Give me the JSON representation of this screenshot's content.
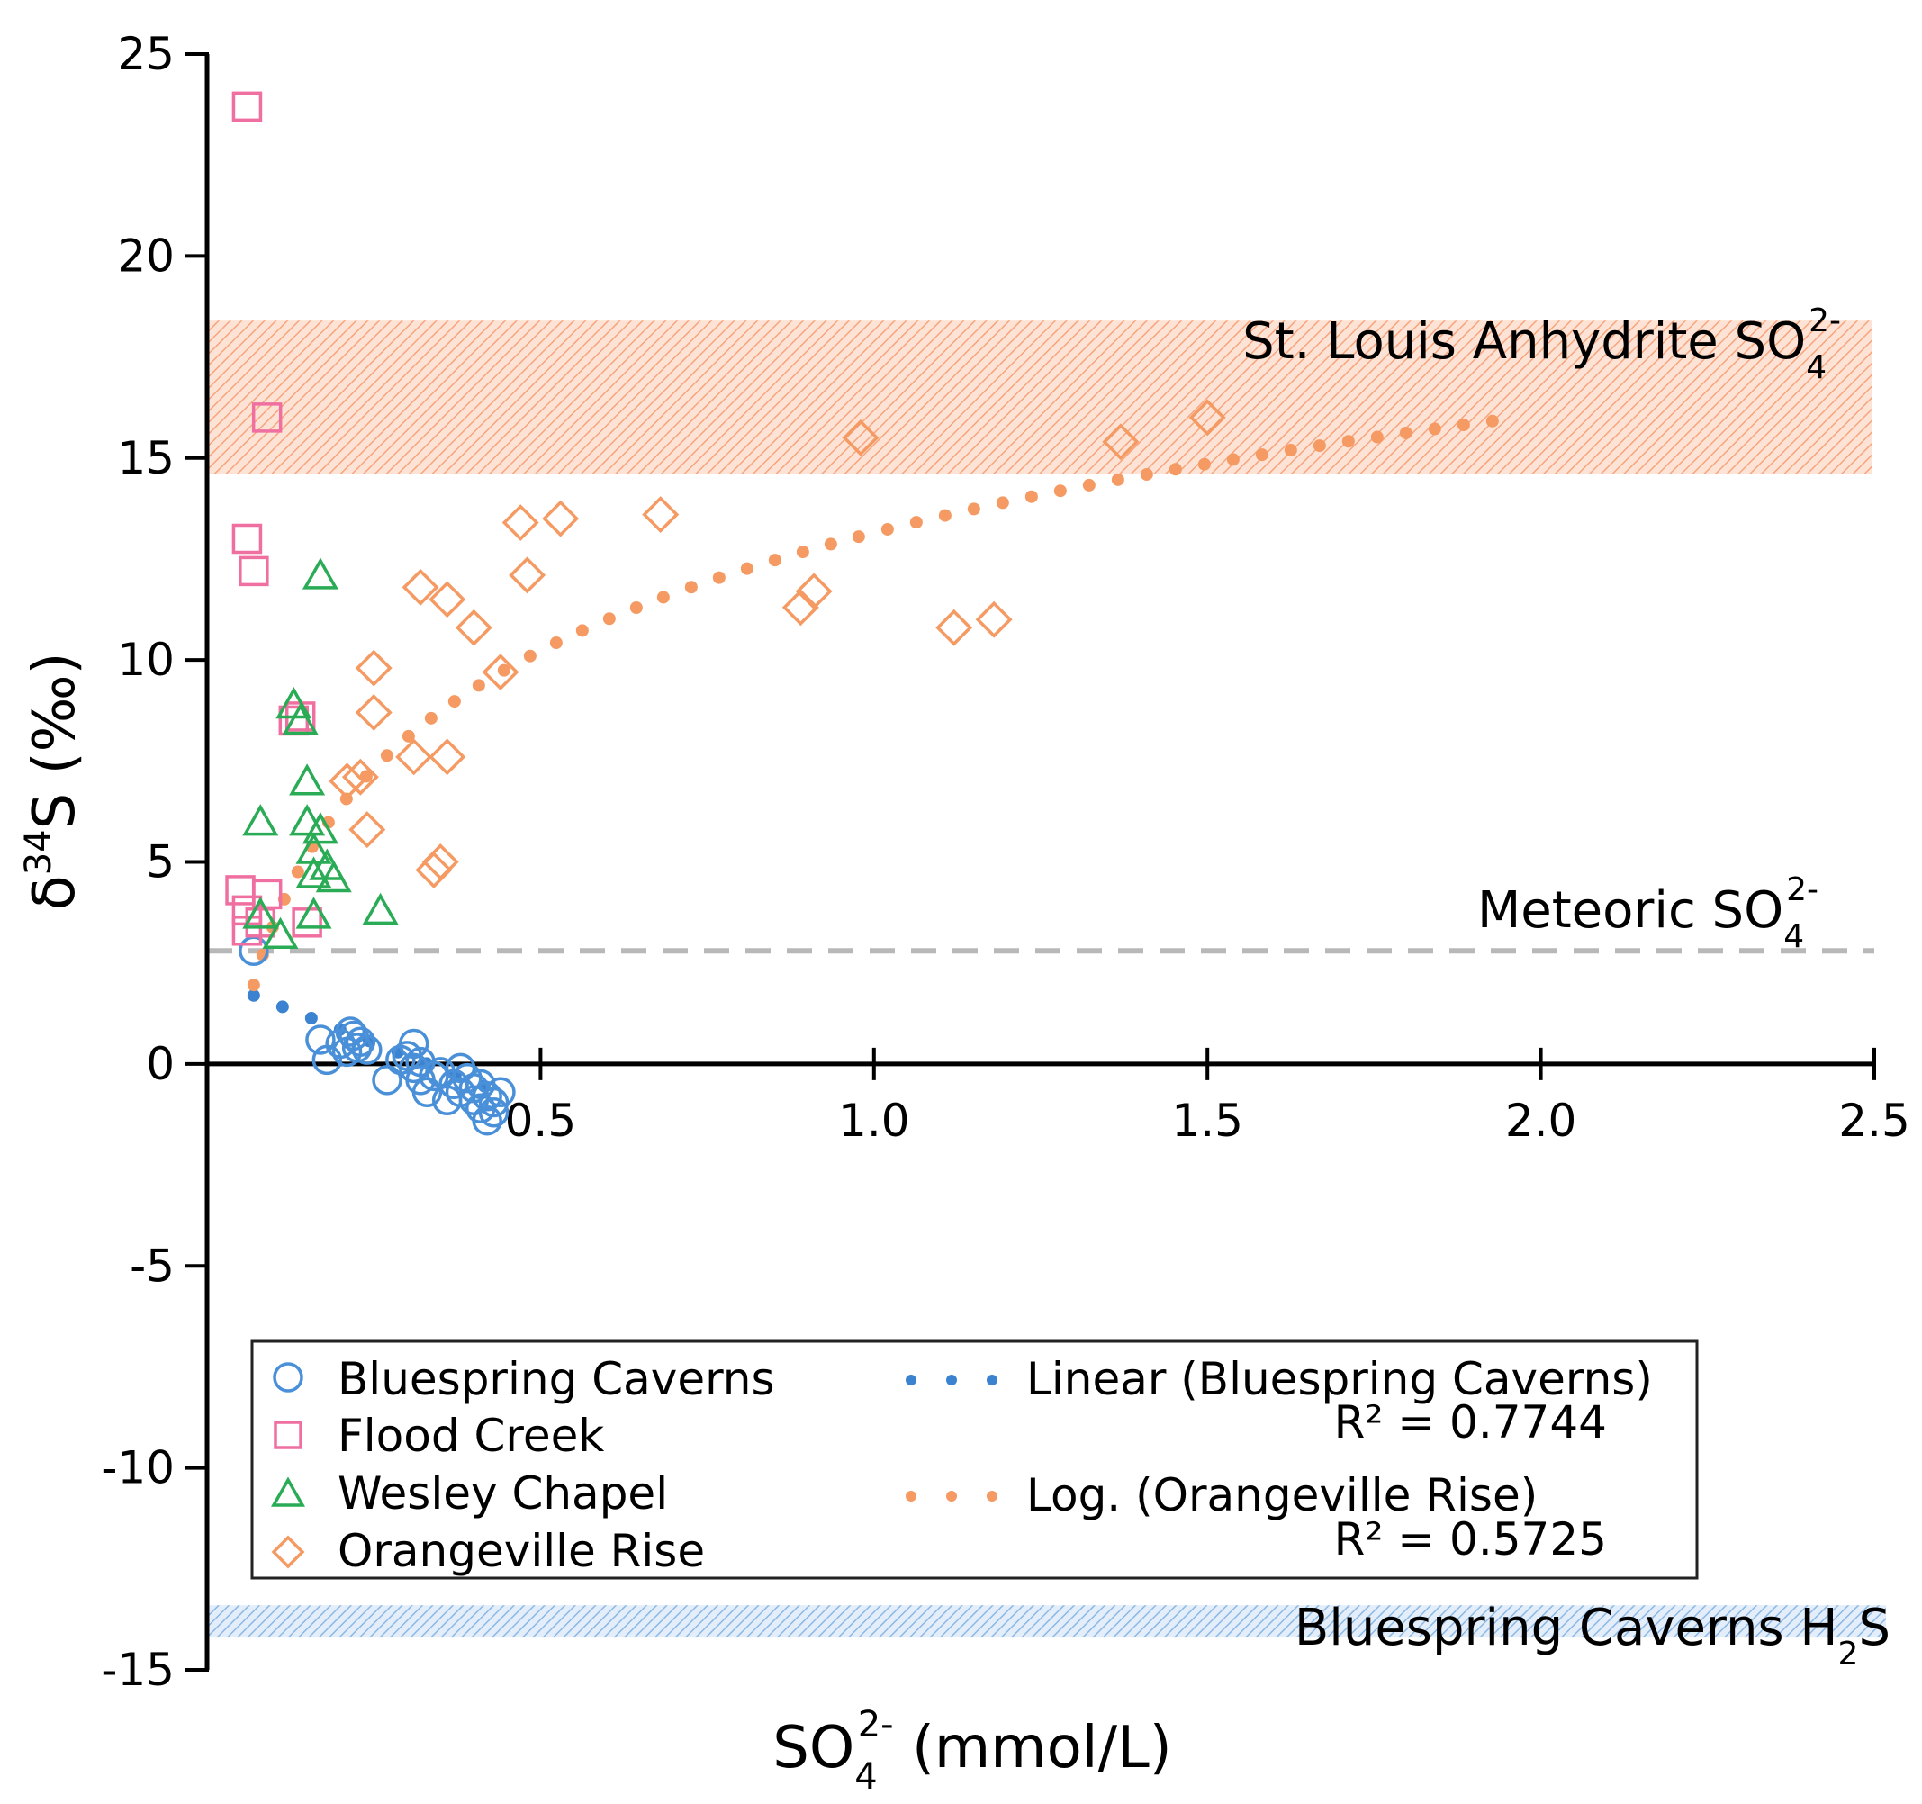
{
  "chart_data": {
    "type": "scatter",
    "xlabel": "SO",
    "xlabel_sub": "4",
    "xlabel_sup": "2-",
    "xlabel_unit": " (mmol/L)",
    "ylabel_delta": "δ",
    "ylabel_sup": "34",
    "ylabel_rest": "S (‰)",
    "xlim": [
      0,
      2.5
    ],
    "ylim": [
      -15,
      25
    ],
    "x_ticks": [
      {
        "v": 0.5,
        "label": "0.5"
      },
      {
        "v": 1.0,
        "label": "1.0"
      },
      {
        "v": 1.5,
        "label": "1.5"
      },
      {
        "v": 2.0,
        "label": "2.0"
      },
      {
        "v": 2.5,
        "label": "2.5"
      }
    ],
    "y_ticks": [
      {
        "v": 25,
        "label": "25"
      },
      {
        "v": 20,
        "label": "20"
      },
      {
        "v": 15,
        "label": "15"
      },
      {
        "v": 10,
        "label": "10"
      },
      {
        "v": 5,
        "label": "5"
      },
      {
        "v": 0,
        "label": "0"
      },
      {
        "v": -5,
        "label": "-5"
      },
      {
        "v": -10,
        "label": "-10"
      },
      {
        "v": -15,
        "label": "-15"
      }
    ],
    "bands": [
      {
        "name": "St. Louis Anhydrite SO",
        "sub": "4",
        "sup": "2-",
        "ymin": 14.6,
        "ymax": 18.4,
        "color": "#f9b08f"
      },
      {
        "name": "Bluespring Caverns H",
        "sub": "2",
        "tail": "S",
        "ymin": -14.2,
        "ymax": -13.4,
        "color": "#9dc3e6"
      }
    ],
    "reference_lines": [
      {
        "name": "Meteoric SO",
        "sub": "4",
        "sup": "2-",
        "y": 2.8,
        "color": "#b8b8b8"
      }
    ],
    "series": [
      {
        "name": "Bluespring Caverns",
        "marker": "circle",
        "color": "#4a90d9",
        "points": [
          [
            0.07,
            2.8
          ],
          [
            0.17,
            0.6
          ],
          [
            0.18,
            0.1
          ],
          [
            0.2,
            0.5
          ],
          [
            0.21,
            0.3
          ],
          [
            0.215,
            0.8
          ],
          [
            0.22,
            0.7
          ],
          [
            0.225,
            0.4
          ],
          [
            0.23,
            0.55
          ],
          [
            0.24,
            0.35
          ],
          [
            0.27,
            -0.4
          ],
          [
            0.29,
            0.1
          ],
          [
            0.3,
            0.2
          ],
          [
            0.31,
            0.5
          ],
          [
            0.31,
            -0.1
          ],
          [
            0.32,
            0.05
          ],
          [
            0.32,
            -0.4
          ],
          [
            0.33,
            -0.7
          ],
          [
            0.34,
            -0.3
          ],
          [
            0.35,
            -0.2
          ],
          [
            0.36,
            -0.9
          ],
          [
            0.37,
            -0.5
          ],
          [
            0.38,
            -0.1
          ],
          [
            0.38,
            -0.7
          ],
          [
            0.39,
            -0.35
          ],
          [
            0.4,
            -0.6
          ],
          [
            0.4,
            -0.9
          ],
          [
            0.41,
            -1.1
          ],
          [
            0.41,
            -0.5
          ],
          [
            0.42,
            -0.8
          ],
          [
            0.42,
            -1.4
          ],
          [
            0.43,
            -0.95
          ],
          [
            0.43,
            -1.2
          ],
          [
            0.44,
            -0.7
          ]
        ]
      },
      {
        "name": "Flood Creek",
        "marker": "square",
        "color": "#ef6fa0",
        "points": [
          [
            0.06,
            23.7
          ],
          [
            0.09,
            16.0
          ],
          [
            0.06,
            13.0
          ],
          [
            0.07,
            12.2
          ],
          [
            0.13,
            8.5
          ],
          [
            0.14,
            8.6
          ],
          [
            0.05,
            4.3
          ],
          [
            0.06,
            3.8
          ],
          [
            0.06,
            3.3
          ],
          [
            0.08,
            3.5
          ],
          [
            0.09,
            4.2
          ],
          [
            0.15,
            3.5
          ]
        ]
      },
      {
        "name": "Wesley Chapel",
        "marker": "triangle",
        "color": "#2aab55",
        "points": [
          [
            0.17,
            12.1
          ],
          [
            0.13,
            8.9
          ],
          [
            0.14,
            8.5
          ],
          [
            0.15,
            7.0
          ],
          [
            0.08,
            6.0
          ],
          [
            0.15,
            6.0
          ],
          [
            0.17,
            5.8
          ],
          [
            0.16,
            5.3
          ],
          [
            0.16,
            4.7
          ],
          [
            0.18,
            4.9
          ],
          [
            0.19,
            4.6
          ],
          [
            0.08,
            3.7
          ],
          [
            0.11,
            3.2
          ],
          [
            0.16,
            3.7
          ],
          [
            0.26,
            3.8
          ]
        ]
      },
      {
        "name": "Orangeville Rise",
        "marker": "diamond",
        "color": "#f49a62",
        "points": [
          [
            0.98,
            15.5
          ],
          [
            1.37,
            15.4
          ],
          [
            1.5,
            16.0
          ],
          [
            0.47,
            13.4
          ],
          [
            0.53,
            13.5
          ],
          [
            0.68,
            13.6
          ],
          [
            0.32,
            11.8
          ],
          [
            0.36,
            11.5
          ],
          [
            0.48,
            12.1
          ],
          [
            0.4,
            10.8
          ],
          [
            0.89,
            11.3
          ],
          [
            0.91,
            11.7
          ],
          [
            1.12,
            10.8
          ],
          [
            1.18,
            11.0
          ],
          [
            0.25,
            9.8
          ],
          [
            0.44,
            9.7
          ],
          [
            0.25,
            8.7
          ],
          [
            0.31,
            7.6
          ],
          [
            0.36,
            7.6
          ],
          [
            0.21,
            7.0
          ],
          [
            0.23,
            7.1
          ],
          [
            0.24,
            5.8
          ],
          [
            0.34,
            4.8
          ],
          [
            0.35,
            5.0
          ]
        ]
      }
    ],
    "trendlines": [
      {
        "name": "Linear (Bluespring Caverns)",
        "r2_text": "R² = 0.7744",
        "type": "linear",
        "slope": -6.5,
        "intercept": 2.15,
        "x_range": [
          0.07,
          0.43
        ],
        "color": "#3b82d1"
      },
      {
        "name": "Log. (Orangeville Rise)",
        "r2_text": "R² = 0.5725",
        "type": "log",
        "a": 4.21,
        "b": 13.15,
        "x_range": [
          0.07,
          1.97
        ],
        "color": "#f49a62"
      }
    ],
    "legend_position": "bottom-left"
  }
}
